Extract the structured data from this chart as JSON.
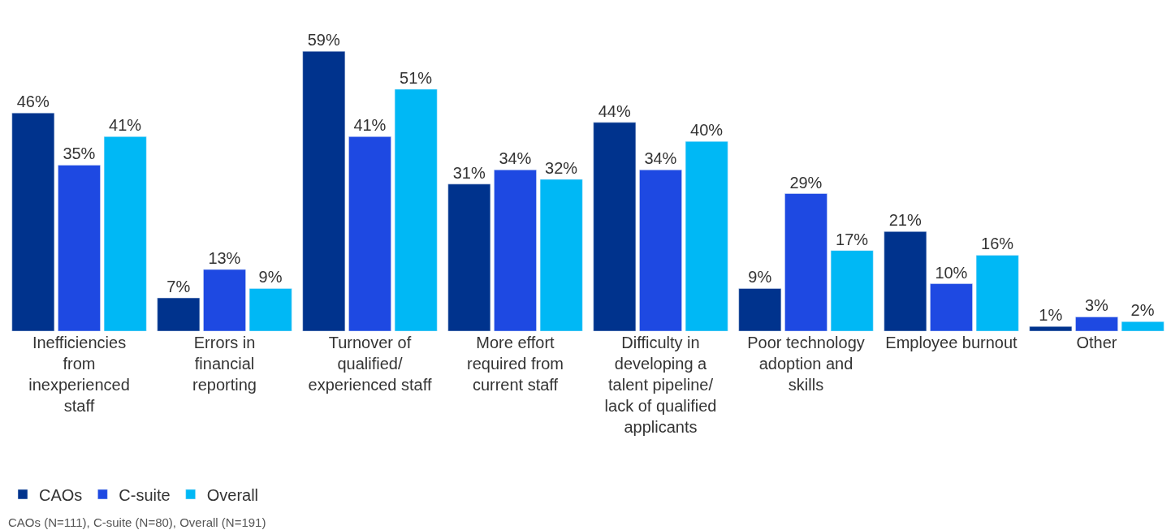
{
  "chart_data": {
    "type": "bar",
    "categories": [
      "Inefficiencies from inexperienced staff",
      "Errors in financial reporting",
      "Turnover of qualified/ experienced staff",
      "More effort required from current staff",
      "Difficulty in developing a talent pipeline/ lack of qualified applicants",
      "Poor technology adoption and skills",
      "Employee burnout",
      "Other"
    ],
    "series": [
      {
        "name": "CAOs",
        "color": "#00338d",
        "values": [
          46,
          7,
          59,
          31,
          44,
          9,
          21,
          1
        ],
        "value_labels": [
          "46%",
          "7%",
          "59%",
          "31%",
          "44%",
          "9%",
          "21%",
          "1%"
        ]
      },
      {
        "name": "C-suite",
        "color": "#1e49e2",
        "values": [
          35,
          13,
          41,
          34,
          34,
          29,
          10,
          3
        ],
        "value_labels": [
          "35%",
          "13%",
          "41%",
          "34%",
          "34%",
          "29%",
          "10%",
          "3%"
        ]
      },
      {
        "name": "Overall",
        "color": "#00b8f5",
        "values": [
          41,
          9,
          51,
          32,
          40,
          17,
          16,
          2
        ],
        "value_labels": [
          "41%",
          "9%",
          "51%",
          "32%",
          "40%",
          "17%",
          "16%",
          "2%"
        ]
      }
    ],
    "legend": "bottom left",
    "annotations": [
      "CAOs (N=111), C-suite (N=80), Overall (N=191)"
    ]
  }
}
